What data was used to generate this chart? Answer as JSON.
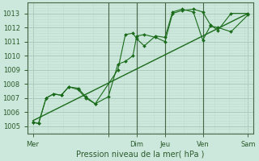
{
  "xlabel": "Pression niveau de la mer( hPa )",
  "bg_color": "#cce8dc",
  "grid_color_major": "#aacaba",
  "grid_color_minor": "#c0ddd0",
  "line_color": "#1a6b1a",
  "vline_color": "#446644",
  "ylim": [
    1004.5,
    1013.75
  ],
  "xlim": [
    0,
    120
  ],
  "yticks": [
    1005,
    1006,
    1007,
    1008,
    1009,
    1010,
    1011,
    1012,
    1013
  ],
  "xtick_positions": [
    3,
    43,
    58,
    73,
    93,
    117
  ],
  "xtick_labels": [
    "Mer",
    "",
    "Dim",
    "Jeu",
    "Ven",
    "Sam"
  ],
  "vline_positions": [
    43,
    58,
    73,
    93
  ],
  "line1_x": [
    3,
    6,
    10,
    14,
    18,
    22,
    27,
    31,
    36,
    43,
    48,
    52,
    56,
    58,
    62,
    68,
    73,
    77,
    82,
    88,
    93,
    97,
    101,
    108,
    117
  ],
  "line1_y": [
    1005.3,
    1005.2,
    1007.0,
    1007.3,
    1007.2,
    1007.8,
    1007.6,
    1007.0,
    1006.6,
    1007.1,
    1009.4,
    1009.6,
    1010.0,
    1011.4,
    1011.5,
    1011.3,
    1011.0,
    1013.0,
    1013.2,
    1013.3,
    1013.1,
    1012.2,
    1011.8,
    1013.0,
    1013.0
  ],
  "line2_x": [
    3,
    6,
    10,
    14,
    18,
    22,
    27,
    31,
    36,
    48,
    52,
    56,
    58,
    62,
    68,
    73,
    77,
    82,
    88,
    93,
    97,
    101,
    108,
    117
  ],
  "line2_y": [
    1005.3,
    1005.2,
    1007.0,
    1007.3,
    1007.2,
    1007.8,
    1007.7,
    1007.1,
    1006.6,
    1009.0,
    1011.5,
    1011.6,
    1011.2,
    1010.7,
    1011.4,
    1011.3,
    1013.1,
    1013.3,
    1013.1,
    1011.1,
    1012.1,
    1012.0,
    1011.7,
    1012.9
  ],
  "trend_x": [
    3,
    117
  ],
  "trend_y": [
    1005.4,
    1013.0
  ]
}
